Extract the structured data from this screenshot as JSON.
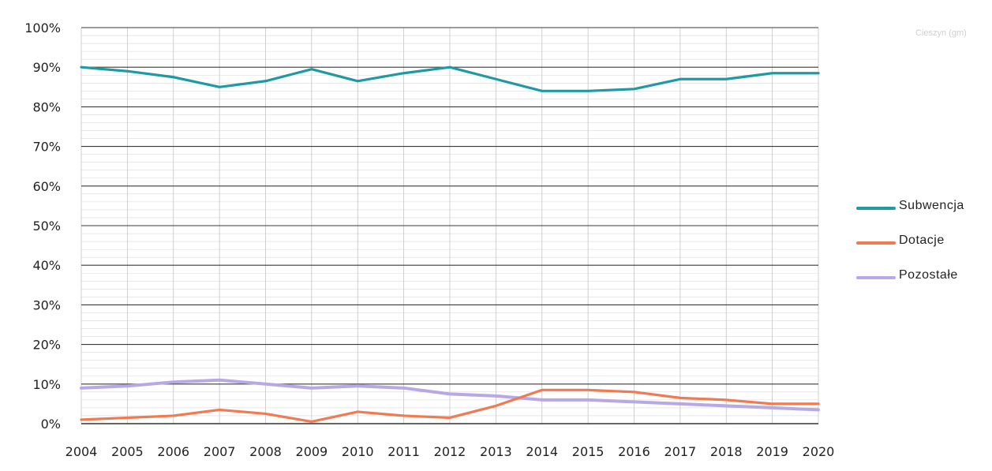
{
  "page_note": "Cieszyn (gm)",
  "chart_data": {
    "type": "line",
    "title": "",
    "xlabel": "",
    "ylabel": "",
    "categories": [
      "2004",
      "2005",
      "2006",
      "2007",
      "2008",
      "2009",
      "2010",
      "2011",
      "2012",
      "2013",
      "2014",
      "2015",
      "2016",
      "2017",
      "2018",
      "2019",
      "2020"
    ],
    "ylim": [
      0,
      100
    ],
    "y_ticks": [
      "0%",
      "10%",
      "20%",
      "30%",
      "40%",
      "50%",
      "60%",
      "70%",
      "80%",
      "90%",
      "100%"
    ],
    "grid": true,
    "legend_position": "right",
    "series": [
      {
        "name": "Subwencja",
        "color": "#1f9aa3",
        "values": [
          90,
          89,
          87.5,
          85,
          86.5,
          89.5,
          86.5,
          88.5,
          90,
          87,
          84,
          84,
          84.5,
          87,
          87,
          88.5,
          88.5
        ]
      },
      {
        "name": "Dotacje",
        "color": "#f07a52",
        "values": [
          1,
          1.5,
          2,
          3.5,
          2.5,
          0.5,
          3,
          2,
          1.5,
          4.5,
          8.5,
          8.5,
          8,
          6.5,
          6,
          5,
          5
        ]
      },
      {
        "name": "Pozostałe",
        "color": "#b8a8e6",
        "values": [
          9,
          9.5,
          10.5,
          11,
          10,
          9,
          9.5,
          9,
          7.5,
          7,
          6,
          6,
          5.5,
          5,
          4.5,
          4,
          3.5
        ]
      }
    ]
  }
}
